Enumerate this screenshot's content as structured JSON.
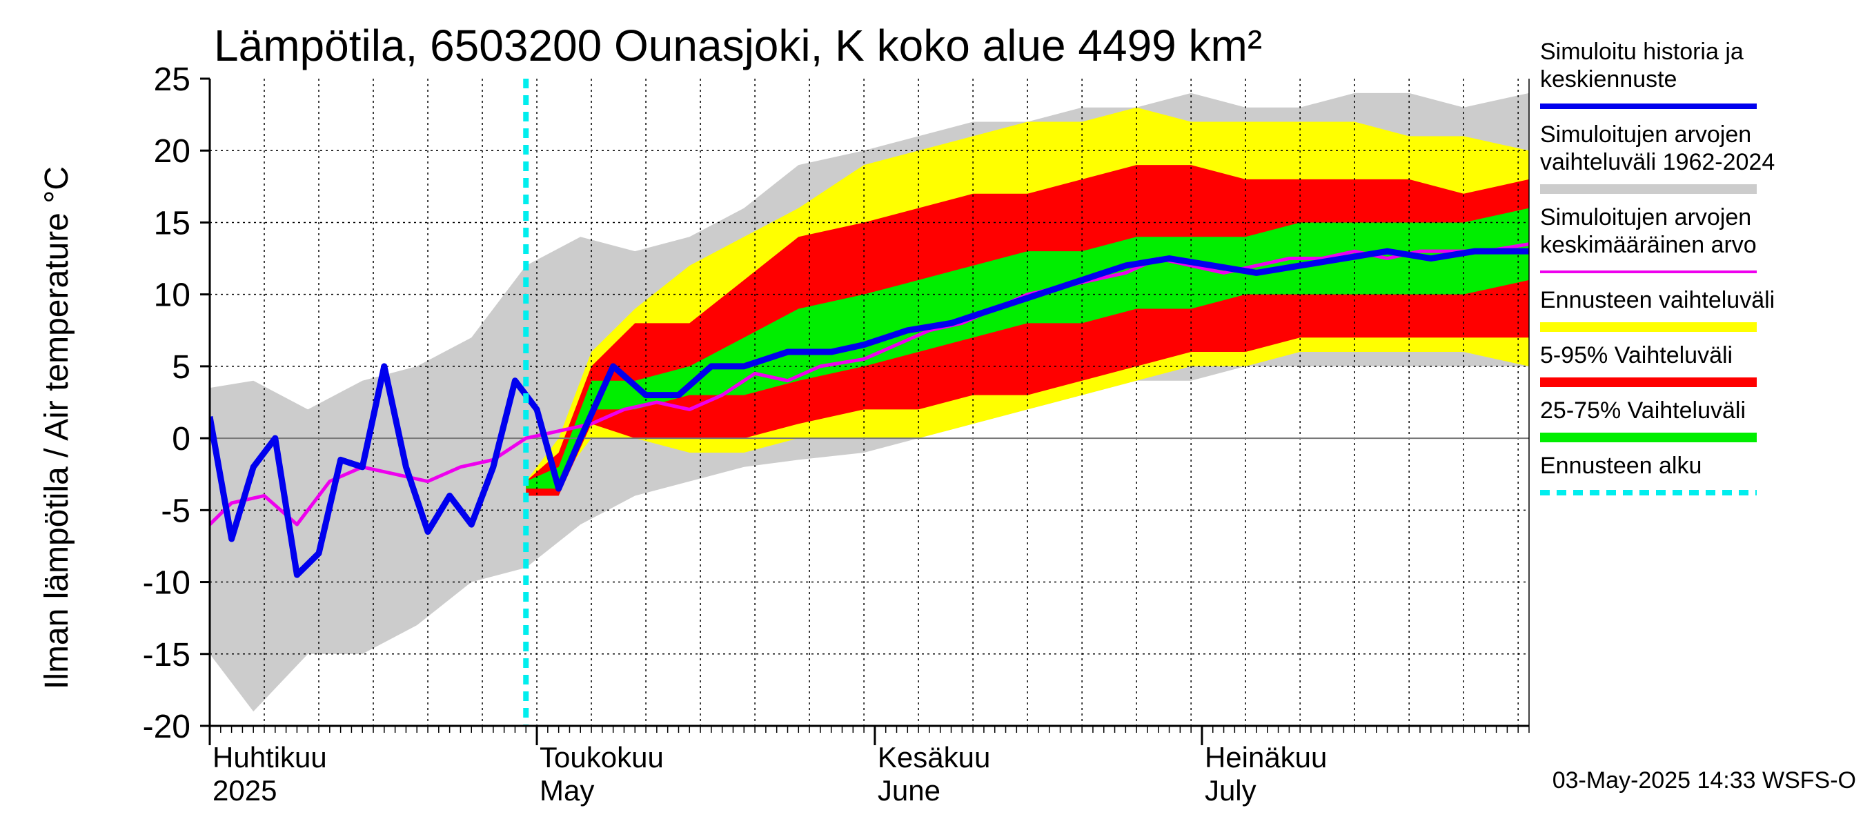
{
  "chart_data": {
    "type": "area",
    "title": "Lämpötila, 6503200 Ounasjoki, K koko alue 4499 km²",
    "ylabel": "Ilman lämpötila / Air temperature   °C",
    "ylim": [
      -20,
      25
    ],
    "yticks": [
      "25",
      "20",
      "15",
      "10",
      "5",
      "0",
      "-5",
      "-10",
      "-15",
      "-20"
    ],
    "xlim": [
      "2025-04-01",
      "2025-07-31"
    ],
    "grid": true,
    "month_labels": [
      {
        "date": "2025-04-01",
        "fi": "Huhtikuu",
        "en": "2025"
      },
      {
        "date": "2025-05-01",
        "fi": "Toukokuu",
        "en": "May"
      },
      {
        "date": "2025-06-01",
        "fi": "Kesäkuu",
        "en": "June"
      },
      {
        "date": "2025-07-01",
        "fi": "Heinäkuu",
        "en": "July"
      }
    ],
    "forecast_start": "2025-04-30",
    "legend_position": "right",
    "legend": [
      {
        "label": "Simuloitu historia ja keskiennuste",
        "lines": [
          "Simuloitu historia ja",
          "keskiennuste"
        ],
        "color": "#0000ee",
        "style": "thick-line"
      },
      {
        "label": "Simuloitujen arvojen vaihteluväli 1962-2024",
        "lines": [
          "Simuloitujen arvojen",
          "vaihteluväli 1962-2024"
        ],
        "color": "#cccccc",
        "style": "band"
      },
      {
        "label": "Simuloitujen arvojen keskimääräinen arvo",
        "lines": [
          "Simuloitujen arvojen",
          "keskimääräinen arvo"
        ],
        "color": "#ee00ee",
        "style": "line"
      },
      {
        "label": "Ennusteen vaihteluväli",
        "lines": [
          "Ennusteen vaihteluväli"
        ],
        "color": "#ffff00",
        "style": "band"
      },
      {
        "label": "5-95% Vaihteluväli",
        "lines": [
          "5-95% Vaihteluväli"
        ],
        "color": "#ff0000",
        "style": "band"
      },
      {
        "label": "25-75% Vaihteluväli",
        "lines": [
          "25-75% Vaihteluväli"
        ],
        "color": "#00ee00",
        "style": "band"
      },
      {
        "label": "Ennusteen alku",
        "lines": [
          "Ennusteen alku"
        ],
        "color": "#00eeee",
        "style": "dashed"
      }
    ],
    "series": {
      "history_range": {
        "name": "Simuloitujen arvojen vaihteluväli 1962-2024",
        "color": "#cccccc",
        "x": [
          "2025-04-01",
          "2025-04-05",
          "2025-04-10",
          "2025-04-15",
          "2025-04-20",
          "2025-04-25",
          "2025-04-30",
          "2025-05-05",
          "2025-05-10",
          "2025-05-15",
          "2025-05-20",
          "2025-05-25",
          "2025-05-31",
          "2025-06-05",
          "2025-06-10",
          "2025-06-15",
          "2025-06-20",
          "2025-06-25",
          "2025-06-30",
          "2025-07-05",
          "2025-07-10",
          "2025-07-15",
          "2025-07-20",
          "2025-07-25",
          "2025-07-31"
        ],
        "upper": [
          3.5,
          4,
          2,
          4,
          5,
          7,
          12,
          14,
          13,
          14,
          16,
          19,
          20,
          21,
          22,
          22,
          23,
          23,
          24,
          23,
          23,
          24,
          24,
          23,
          24
        ],
        "lower": [
          -15,
          -19,
          -15,
          -15,
          -13,
          -10,
          -9,
          -6,
          -4,
          -3,
          -2,
          -1.5,
          -1,
          0,
          1,
          2,
          3,
          4,
          4,
          5,
          5,
          5,
          5,
          5,
          5
        ]
      },
      "forecast_range": {
        "name": "Ennusteen vaihteluväli",
        "color": "#ffff00",
        "x": [
          "2025-04-30",
          "2025-05-03",
          "2025-05-06",
          "2025-05-10",
          "2025-05-15",
          "2025-05-20",
          "2025-05-25",
          "2025-05-31",
          "2025-06-05",
          "2025-06-10",
          "2025-06-15",
          "2025-06-20",
          "2025-06-25",
          "2025-06-30",
          "2025-07-05",
          "2025-07-10",
          "2025-07-15",
          "2025-07-20",
          "2025-07-25",
          "2025-07-31"
        ],
        "upper": [
          -3,
          0,
          6,
          9,
          12,
          14,
          16,
          19,
          20,
          21,
          22,
          22,
          23,
          22,
          22,
          22,
          22,
          21,
          21,
          20
        ],
        "lower": [
          -4,
          -3,
          0,
          0,
          -1,
          -1,
          0,
          0,
          0,
          1,
          2,
          3,
          4,
          5,
          5,
          6,
          6,
          6,
          6,
          5
        ]
      },
      "p5_95": {
        "name": "5-95% Vaihteluväli",
        "color": "#ff0000",
        "x": [
          "2025-04-30",
          "2025-05-03",
          "2025-05-06",
          "2025-05-10",
          "2025-05-15",
          "2025-05-20",
          "2025-05-25",
          "2025-05-31",
          "2025-06-05",
          "2025-06-10",
          "2025-06-15",
          "2025-06-20",
          "2025-06-25",
          "2025-06-30",
          "2025-07-05",
          "2025-07-10",
          "2025-07-15",
          "2025-07-20",
          "2025-07-25",
          "2025-07-31"
        ],
        "upper": [
          -3,
          -1,
          5,
          8,
          8,
          11,
          14,
          15,
          16,
          17,
          17,
          18,
          19,
          19,
          18,
          18,
          18,
          18,
          17,
          18
        ],
        "lower": [
          -4,
          -4,
          1,
          0,
          0,
          0,
          1,
          2,
          2,
          3,
          3,
          4,
          5,
          6,
          6,
          7,
          7,
          7,
          7,
          7
        ]
      },
      "p25_75": {
        "name": "25-75% Vaihteluväli",
        "color": "#00ee00",
        "x": [
          "2025-04-30",
          "2025-05-03",
          "2025-05-06",
          "2025-05-10",
          "2025-05-15",
          "2025-05-20",
          "2025-05-25",
          "2025-05-31",
          "2025-06-05",
          "2025-06-10",
          "2025-06-15",
          "2025-06-20",
          "2025-06-25",
          "2025-06-30",
          "2025-07-05",
          "2025-07-10",
          "2025-07-15",
          "2025-07-20",
          "2025-07-25",
          "2025-07-31"
        ],
        "upper": [
          -3,
          -2,
          4,
          4,
          5,
          7,
          9,
          10,
          11,
          12,
          13,
          13,
          14,
          14,
          14,
          15,
          15,
          15,
          15,
          16
        ],
        "lower": [
          -3.5,
          -3.5,
          2,
          2,
          3,
          3,
          4,
          5,
          6,
          7,
          8,
          8,
          9,
          9,
          10,
          10,
          10,
          10,
          10,
          11
        ]
      },
      "mean_history": {
        "name": "Simuloitujen arvojen keskimääräinen arvo",
        "color": "#ee00ee",
        "x": [
          "2025-04-01",
          "2025-04-03",
          "2025-04-06",
          "2025-04-09",
          "2025-04-12",
          "2025-04-15",
          "2025-04-18",
          "2025-04-21",
          "2025-04-24",
          "2025-04-27",
          "2025-04-30",
          "2025-05-03",
          "2025-05-06",
          "2025-05-09",
          "2025-05-12",
          "2025-05-15",
          "2025-05-18",
          "2025-05-21",
          "2025-05-24",
          "2025-05-27",
          "2025-05-31",
          "2025-06-03",
          "2025-06-06",
          "2025-06-09",
          "2025-06-12",
          "2025-06-15",
          "2025-06-18",
          "2025-06-21",
          "2025-06-24",
          "2025-06-27",
          "2025-06-30",
          "2025-07-03",
          "2025-07-06",
          "2025-07-09",
          "2025-07-12",
          "2025-07-15",
          "2025-07-18",
          "2025-07-21",
          "2025-07-24",
          "2025-07-27",
          "2025-07-31"
        ],
        "values": [
          -6,
          -4.5,
          -4,
          -6,
          -3,
          -2,
          -2.5,
          -3,
          -2,
          -1.5,
          0,
          0.5,
          1,
          2,
          2.5,
          2,
          3,
          4.5,
          4,
          5,
          5.5,
          6.5,
          7.5,
          8,
          9,
          10,
          10.5,
          11,
          11.5,
          12.5,
          12,
          11.5,
          12,
          12.5,
          12.5,
          13,
          12.5,
          13,
          13,
          13,
          13.5
        ]
      },
      "simulated_forecast": {
        "name": "Simuloitu historia ja keskiennuste",
        "color": "#0000ee",
        "x": [
          "2025-04-01",
          "2025-04-03",
          "2025-04-05",
          "2025-04-07",
          "2025-04-09",
          "2025-04-11",
          "2025-04-13",
          "2025-04-15",
          "2025-04-17",
          "2025-04-19",
          "2025-04-21",
          "2025-04-23",
          "2025-04-25",
          "2025-04-27",
          "2025-04-29",
          "2025-05-01",
          "2025-05-03",
          "2025-05-05",
          "2025-05-08",
          "2025-05-11",
          "2025-05-14",
          "2025-05-17",
          "2025-05-20",
          "2025-05-24",
          "2025-05-28",
          "2025-05-31",
          "2025-06-04",
          "2025-06-08",
          "2025-06-12",
          "2025-06-16",
          "2025-06-20",
          "2025-06-24",
          "2025-06-28",
          "2025-07-02",
          "2025-07-06",
          "2025-07-10",
          "2025-07-14",
          "2025-07-18",
          "2025-07-22",
          "2025-07-26",
          "2025-07-31"
        ],
        "values": [
          1.5,
          -7,
          -2,
          0,
          -9.5,
          -8,
          -1.5,
          -2,
          5,
          -2,
          -6.5,
          -4,
          -6,
          -2,
          4,
          2,
          -3.5,
          0,
          5,
          3,
          3,
          5,
          5,
          6,
          6,
          6.5,
          7.5,
          8,
          9,
          10,
          11,
          12,
          12.5,
          12,
          11.5,
          12,
          12.5,
          13,
          12.5,
          13,
          13
        ]
      }
    },
    "footer": "03-May-2025 14:33 WSFS-O"
  }
}
